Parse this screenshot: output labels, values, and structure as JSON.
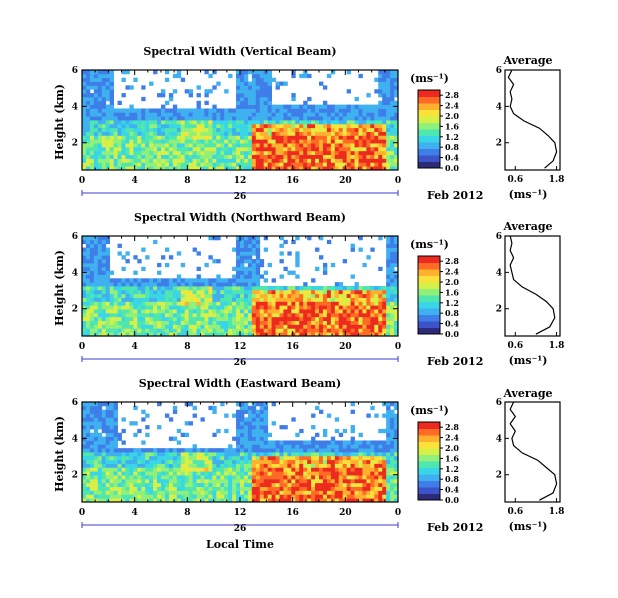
{
  "colors": {
    "colormap": [
      "#2b2b7a",
      "#3d53c8",
      "#3f7ee8",
      "#3fb0f0",
      "#38d6e6",
      "#4fe6b0",
      "#8ff07a",
      "#d6f047",
      "#fbe23b",
      "#ffb02e",
      "#ff6a24",
      "#ec2a1f"
    ],
    "axis": "#000000",
    "profile": "#000000",
    "baseline_bar": "#3b3bd0",
    "background": "#ffffff"
  },
  "figure": {
    "xlabel": "Local Time",
    "date_label": "Feb 2012",
    "day_label": "26",
    "ylabel": "Height (km)",
    "colorbar_unit": "(ms⁻¹)",
    "profile_title": "Average",
    "profile_xlabel": "(ms⁻¹)"
  },
  "chart_data": [
    {
      "type": "heatmap",
      "title": "Spectral Width (Vertical Beam)",
      "xlabel": "Local Time",
      "ylabel": "Height (km)",
      "x_ticks": [
        "0",
        "4",
        "8",
        "12",
        "16",
        "20",
        "0"
      ],
      "xlim": [
        0,
        24
      ],
      "y_ticks": [
        "2",
        "4",
        "6"
      ],
      "ylim": [
        0.5,
        6
      ],
      "colorbar": {
        "label": "(ms⁻¹)",
        "ticks": [
          "0.0",
          "0.4",
          "0.8",
          "1.2",
          "1.6",
          "2.0",
          "2.4",
          "2.8"
        ],
        "range": [
          0,
          3.0
        ]
      },
      "grid": false,
      "data_gap_regions": [
        {
          "x": [
            2.5,
            11.6
          ],
          "y": [
            3.8,
            6.0
          ]
        },
        {
          "x": [
            14.5,
            22.5
          ],
          "y": [
            4.2,
            6.0
          ]
        }
      ],
      "profile": {
        "title": "Average",
        "xlabel": "(ms⁻¹)",
        "x_ticks": [
          "0.6",
          "1.8"
        ],
        "xlim": [
          0.3,
          1.9
        ],
        "y_ticks": [
          "2",
          "4",
          "6"
        ],
        "ylim": [
          0.5,
          6
        ],
        "height": [
          0.6,
          1.0,
          1.5,
          2.0,
          2.4,
          2.8,
          3.2,
          3.6,
          4.0,
          4.4,
          4.8,
          5.2,
          5.6,
          6.0
        ],
        "value": [
          1.45,
          1.7,
          1.8,
          1.75,
          1.55,
          1.3,
          0.85,
          0.55,
          0.45,
          0.5,
          0.45,
          0.55,
          0.4,
          0.5
        ]
      }
    },
    {
      "type": "heatmap",
      "title": "Spectral Width (Northward Beam)",
      "xlabel": "Local Time",
      "ylabel": "Height (km)",
      "x_ticks": [
        "0",
        "4",
        "8",
        "12",
        "16",
        "20",
        "0"
      ],
      "xlim": [
        0,
        24
      ],
      "y_ticks": [
        "2",
        "4",
        "6"
      ],
      "ylim": [
        0.5,
        6
      ],
      "colorbar": {
        "label": "(ms⁻¹)",
        "ticks": [
          "0.0",
          "0.4",
          "0.8",
          "1.2",
          "1.6",
          "2.0",
          "2.4",
          "2.8"
        ],
        "range": [
          0,
          3.0
        ]
      },
      "grid": false,
      "data_gap_regions": [
        {
          "x": [
            2.2,
            11.8
          ],
          "y": [
            3.6,
            6.0
          ]
        },
        {
          "x": [
            13.5,
            23.0
          ],
          "y": [
            3.2,
            6.0
          ]
        }
      ],
      "profile": {
        "title": "Average",
        "xlabel": "(ms⁻¹)",
        "x_ticks": [
          "0.6",
          "1.8"
        ],
        "xlim": [
          0.3,
          1.9
        ],
        "y_ticks": [
          "2",
          "4",
          "6"
        ],
        "ylim": [
          0.5,
          6
        ],
        "height": [
          0.6,
          1.0,
          1.5,
          2.0,
          2.4,
          2.8,
          3.2,
          3.6,
          4.0,
          4.4,
          4.8,
          5.2,
          5.6,
          6.0
        ],
        "value": [
          1.2,
          1.6,
          1.75,
          1.7,
          1.5,
          1.2,
          0.8,
          0.55,
          0.5,
          0.45,
          0.55,
          0.45,
          0.5,
          0.45
        ]
      }
    },
    {
      "type": "heatmap",
      "title": "Spectral Width (Eastward Beam)",
      "xlabel": "Local Time",
      "ylabel": "Height (km)",
      "x_ticks": [
        "0",
        "4",
        "8",
        "12",
        "16",
        "20",
        "0"
      ],
      "xlim": [
        0,
        24
      ],
      "y_ticks": [
        "2",
        "4",
        "6"
      ],
      "ylim": [
        0.5,
        6
      ],
      "colorbar": {
        "label": "(ms⁻¹)",
        "ticks": [
          "0.0",
          "0.4",
          "0.8",
          "1.2",
          "1.6",
          "2.0",
          "2.4",
          "2.8"
        ],
        "range": [
          0,
          3.0
        ]
      },
      "grid": false,
      "data_gap_regions": [
        {
          "x": [
            2.6,
            11.8
          ],
          "y": [
            3.5,
            6.0
          ]
        },
        {
          "x": [
            14.0,
            23.0
          ],
          "y": [
            3.8,
            6.0
          ]
        }
      ],
      "profile": {
        "title": "Average",
        "xlabel": "(ms⁻¹)",
        "x_ticks": [
          "0.6",
          "1.8"
        ],
        "xlim": [
          0.3,
          1.9
        ],
        "y_ticks": [
          "2",
          "4",
          "6"
        ],
        "ylim": [
          0.5,
          6
        ],
        "height": [
          0.6,
          1.0,
          1.5,
          2.0,
          2.4,
          2.8,
          3.2,
          3.6,
          4.0,
          4.4,
          4.8,
          5.2,
          5.6,
          6.0
        ],
        "value": [
          1.3,
          1.7,
          1.8,
          1.75,
          1.5,
          1.25,
          0.8,
          0.55,
          0.5,
          0.6,
          0.45,
          0.6,
          0.45,
          0.55
        ]
      }
    }
  ]
}
